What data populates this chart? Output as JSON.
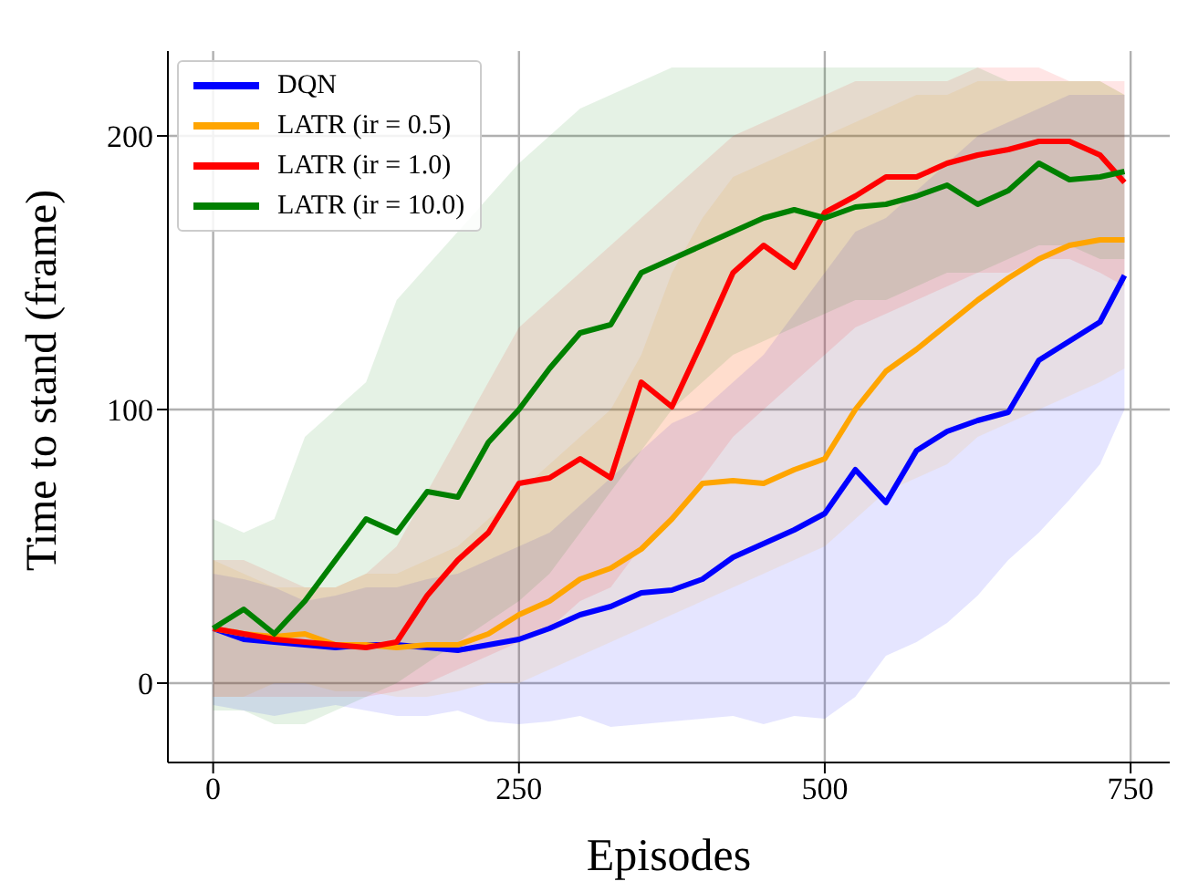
{
  "chart_data": {
    "type": "line",
    "xlabel": "Episodes",
    "ylabel": "Time to stand (frame)",
    "x": [
      0,
      25,
      50,
      75,
      100,
      125,
      150,
      175,
      200,
      225,
      250,
      275,
      300,
      325,
      350,
      375,
      400,
      425,
      450,
      475,
      500,
      525,
      550,
      575,
      600,
      625,
      650,
      675,
      700,
      725,
      745
    ],
    "xlim": [
      -37,
      782
    ],
    "xticks": [
      0,
      250,
      500,
      750
    ],
    "ylim": [
      -29,
      231
    ],
    "yticks": [
      0,
      100,
      200
    ],
    "grid": true,
    "legend": "top left",
    "marker": "none",
    "line_style": "solid",
    "series": [
      {
        "name": "DQN",
        "color": "#0000ff",
        "values": [
          20,
          16,
          15,
          14,
          13,
          14,
          14,
          13,
          12,
          14,
          16,
          20,
          25,
          28,
          33,
          34,
          38,
          46,
          51,
          56,
          62,
          78,
          66,
          85,
          92,
          96,
          99,
          118,
          125,
          132,
          149
        ],
        "lower": [
          -8,
          -10,
          -12,
          -10,
          -8,
          -10,
          -12,
          -12,
          -10,
          -14,
          -15,
          -14,
          -12,
          -16,
          -15,
          -14,
          -13,
          -12,
          -15,
          -12,
          -13,
          -5,
          10,
          15,
          22,
          32,
          45,
          55,
          67,
          80,
          100
        ],
        "upper": [
          40,
          38,
          35,
          30,
          32,
          35,
          35,
          38,
          40,
          45,
          50,
          55,
          65,
          75,
          85,
          95,
          100,
          110,
          120,
          135,
          150,
          165,
          170,
          180,
          190,
          200,
          205,
          210,
          215,
          215,
          215
        ]
      },
      {
        "name": "LATR (ir = 0.5)",
        "color": "#ffa500",
        "values": [
          20,
          18,
          17,
          18,
          14,
          14,
          13,
          14,
          14,
          18,
          25,
          30,
          38,
          42,
          49,
          60,
          73,
          74,
          73,
          78,
          82,
          100,
          114,
          122,
          131,
          140,
          148,
          155,
          160,
          162,
          162
        ],
        "lower": [
          -5,
          -5,
          0,
          0,
          -3,
          -3,
          -5,
          -5,
          -3,
          0,
          0,
          5,
          10,
          15,
          20,
          25,
          30,
          35,
          40,
          45,
          50,
          60,
          70,
          75,
          80,
          90,
          95,
          100,
          105,
          110,
          115
        ],
        "upper": [
          45,
          40,
          35,
          35,
          35,
          40,
          40,
          45,
          50,
          60,
          70,
          80,
          90,
          100,
          120,
          150,
          170,
          185,
          190,
          195,
          200,
          205,
          210,
          215,
          215,
          220,
          220,
          220,
          220,
          220,
          215
        ]
      },
      {
        "name": "LATR (ir = 1.0)",
        "color": "#ff0000",
        "values": [
          20,
          18,
          16,
          15,
          14,
          13,
          15,
          32,
          45,
          55,
          73,
          75,
          82,
          75,
          110,
          101,
          125,
          150,
          160,
          152,
          172,
          178,
          185,
          185,
          190,
          193,
          195,
          198,
          198,
          193,
          183
        ],
        "lower": [
          -5,
          -5,
          -5,
          -5,
          -5,
          -5,
          -3,
          0,
          5,
          10,
          15,
          20,
          30,
          35,
          50,
          60,
          75,
          90,
          100,
          110,
          120,
          130,
          135,
          140,
          145,
          150,
          150,
          155,
          155,
          150,
          145
        ],
        "upper": [
          45,
          45,
          40,
          35,
          35,
          40,
          50,
          70,
          90,
          110,
          130,
          140,
          150,
          160,
          170,
          180,
          190,
          200,
          205,
          210,
          215,
          220,
          220,
          220,
          220,
          225,
          225,
          225,
          220,
          220,
          220
        ]
      },
      {
        "name": "LATR (ir = 10.0)",
        "color": "#008000",
        "values": [
          20,
          27,
          18,
          30,
          45,
          60,
          55,
          70,
          68,
          88,
          100,
          115,
          128,
          131,
          150,
          155,
          160,
          165,
          170,
          173,
          170,
          174,
          175,
          178,
          182,
          175,
          180,
          190,
          184,
          185,
          187
        ],
        "lower": [
          -10,
          -10,
          -15,
          -15,
          -10,
          -5,
          0,
          null,
          null,
          null,
          30,
          40,
          55,
          70,
          85,
          100,
          110,
          120,
          125,
          130,
          135,
          140,
          140,
          145,
          150,
          150,
          155,
          160,
          160,
          155,
          155
        ],
        "upper": [
          60,
          55,
          60,
          90,
          100,
          110,
          140,
          null,
          null,
          null,
          190,
          200,
          210,
          215,
          220,
          225,
          225,
          225,
          225,
          225,
          225,
          225,
          225,
          225,
          225,
          225,
          220,
          220,
          220,
          220,
          215
        ]
      }
    ]
  }
}
